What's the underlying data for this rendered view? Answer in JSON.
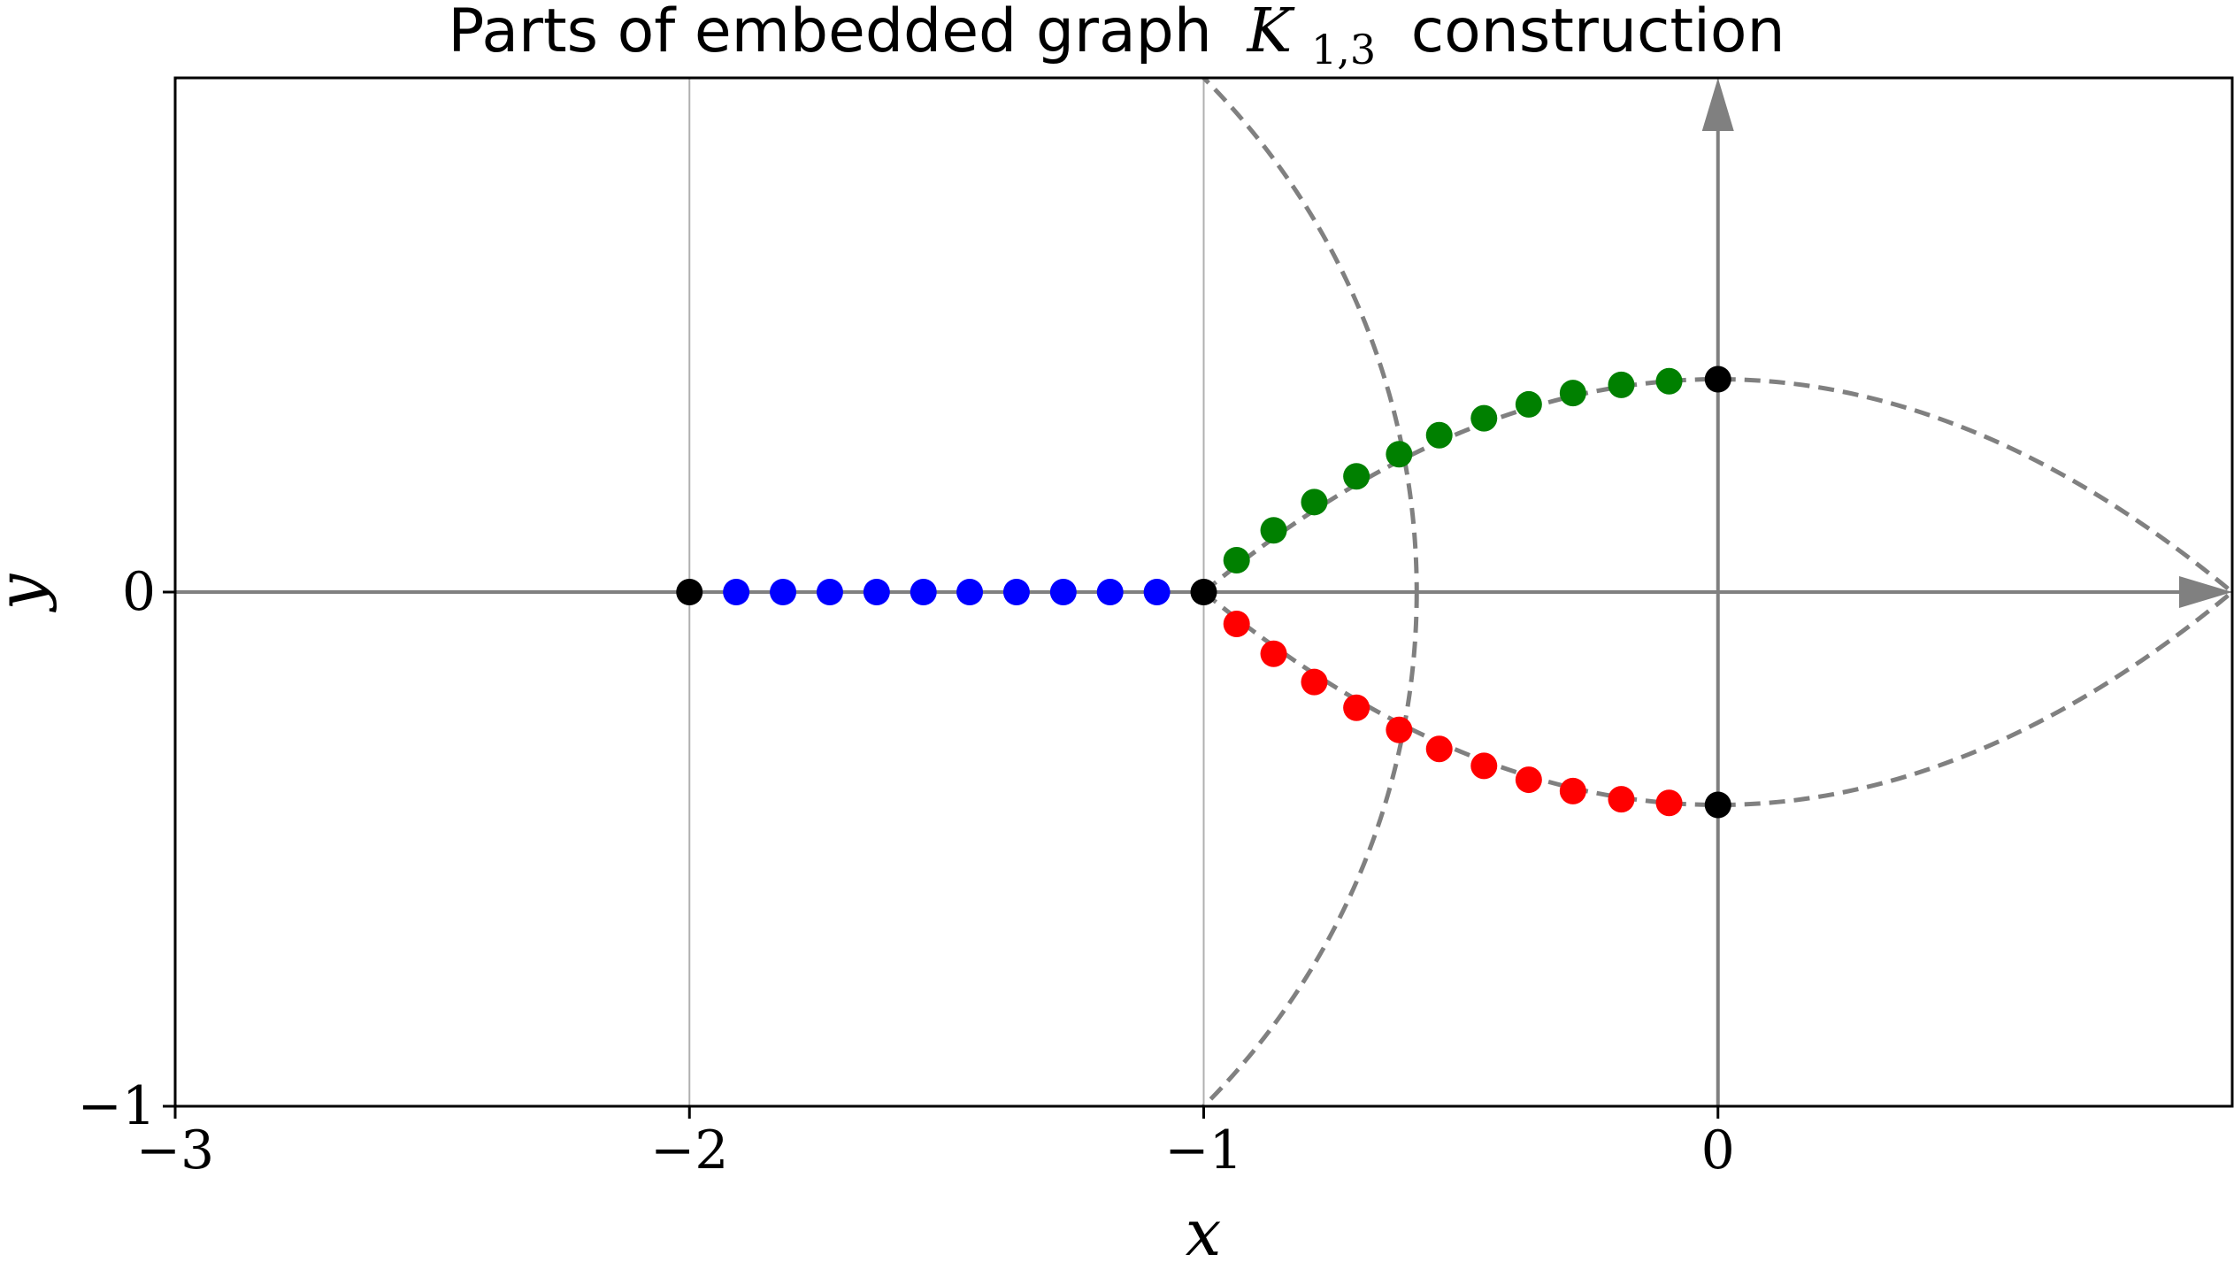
{
  "chart_data": {
    "type": "scatter",
    "title": "Parts of embedded graph",
    "title_math": "K",
    "title_math_subscript": "1,3",
    "title_suffix": "construction",
    "xlabel": "x",
    "ylabel": "y",
    "xlim": [
      -3,
      1
    ],
    "ylim": [
      -1,
      1
    ],
    "xticks": [
      -3,
      -2,
      -1,
      0
    ],
    "xtick_labels": [
      "−3",
      "−2",
      "−1",
      "0"
    ],
    "yticks": [
      -1,
      0
    ],
    "ytick_labels": [
      "−1",
      "0"
    ],
    "grid": true,
    "legend": "none",
    "colors": {
      "blue": "#0000ff",
      "green": "#008000",
      "red": "#ff0000",
      "black": "#000000",
      "guide": "#808080",
      "grid": "#b0b0b0"
    },
    "arrows": [
      {
        "from": [
          0,
          -1
        ],
        "to": [
          0,
          1
        ]
      },
      {
        "from": [
          -3,
          0
        ],
        "to": [
          1,
          0
        ]
      }
    ],
    "dashed_curves": [
      {
        "type": "circle",
        "center": [
          -2,
          0
        ],
        "radius": 1.4142
      },
      {
        "type": "arc",
        "from": [
          -1,
          0
        ],
        "through": [
          0,
          0.414
        ],
        "to": [
          1,
          0
        ]
      },
      {
        "type": "arc",
        "from": [
          -1,
          0
        ],
        "through": [
          0,
          -0.414
        ],
        "to": [
          1,
          0
        ]
      }
    ],
    "series": [
      {
        "color": "black",
        "points": [
          [
            -2,
            0
          ],
          [
            -1,
            0
          ],
          [
            0,
            0.414
          ],
          [
            0,
            -0.414
          ]
        ]
      },
      {
        "color": "blue",
        "points": [
          [
            -1.909,
            0
          ],
          [
            -1.818,
            0
          ],
          [
            -1.727,
            0
          ],
          [
            -1.636,
            0
          ],
          [
            -1.545,
            0
          ],
          [
            -1.455,
            0
          ],
          [
            -1.364,
            0
          ],
          [
            -1.273,
            0
          ],
          [
            -1.182,
            0
          ],
          [
            -1.091,
            0
          ]
        ]
      },
      {
        "color": "green",
        "points": [
          [
            -0.936,
            0.062
          ],
          [
            -0.864,
            0.12
          ],
          [
            -0.785,
            0.175
          ],
          [
            -0.703,
            0.225
          ],
          [
            -0.62,
            0.268
          ],
          [
            -0.542,
            0.305
          ],
          [
            -0.455,
            0.338
          ],
          [
            -0.368,
            0.365
          ],
          [
            -0.282,
            0.387
          ],
          [
            -0.188,
            0.403
          ],
          [
            -0.095,
            0.41
          ]
        ]
      },
      {
        "color": "red",
        "points": [
          [
            -0.936,
            -0.062
          ],
          [
            -0.864,
            -0.12
          ],
          [
            -0.785,
            -0.175
          ],
          [
            -0.703,
            -0.225
          ],
          [
            -0.62,
            -0.268
          ],
          [
            -0.542,
            -0.305
          ],
          [
            -0.455,
            -0.338
          ],
          [
            -0.368,
            -0.365
          ],
          [
            -0.282,
            -0.387
          ],
          [
            -0.188,
            -0.403
          ],
          [
            -0.095,
            -0.41
          ]
        ]
      }
    ]
  }
}
